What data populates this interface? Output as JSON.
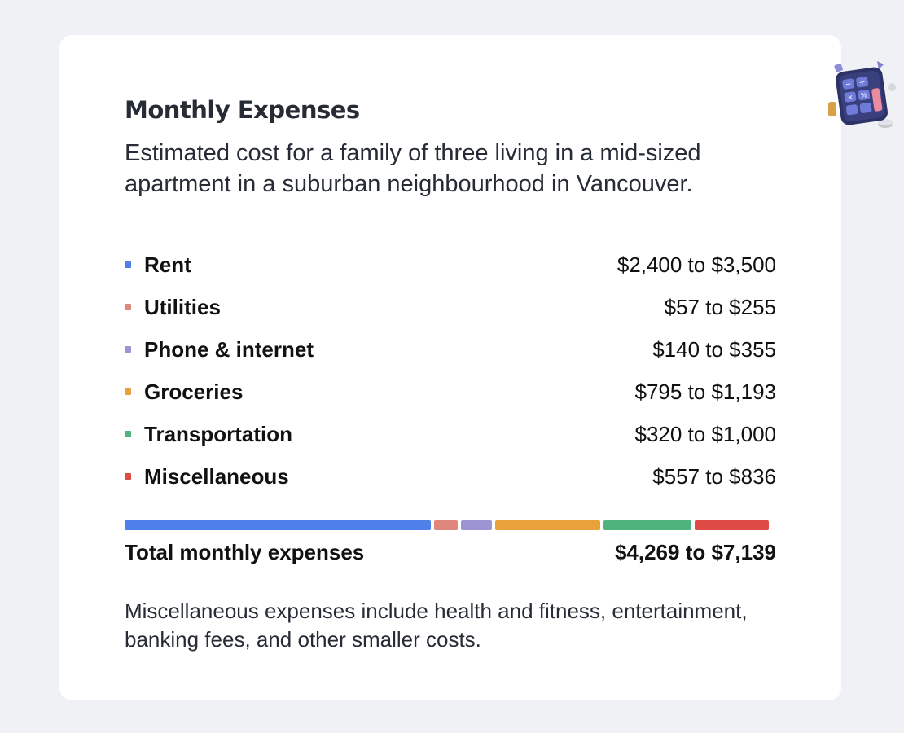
{
  "card": {
    "title": "Monthly Expenses",
    "subtitle": "Estimated cost for a family of three living in a mid-sized apartment in a suburban neighbourhood in Vancouver.",
    "illustration_icon": "calculator-icon",
    "expenses": [
      {
        "label": "Rent",
        "range": "$2,400 to $3,500",
        "color": "#4f7fe8",
        "share": 0.4818
      },
      {
        "label": "Utilities",
        "range": "$57 to $255",
        "color": "#e0877d",
        "share": 0.0372
      },
      {
        "label": "Phone & internet",
        "range": "$140 to $355",
        "color": "#9b95d4",
        "share": 0.049
      },
      {
        "label": "Groceries",
        "range": "$795 to $1,193",
        "color": "#e9a23b",
        "share": 0.1653
      },
      {
        "label": "Transportation",
        "range": "$320 to $1,000",
        "color": "#4fb37e",
        "share": 0.1385
      },
      {
        "label": "Miscellaneous",
        "range": "$557 to $836",
        "color": "#de4b47",
        "share": 0.1165
      }
    ],
    "total": {
      "label": "Total monthly expenses",
      "range": "$4,269 to $7,139"
    },
    "note": "Miscellaneous expenses include health and fitness, entertainment, banking fees, and other smaller costs."
  }
}
